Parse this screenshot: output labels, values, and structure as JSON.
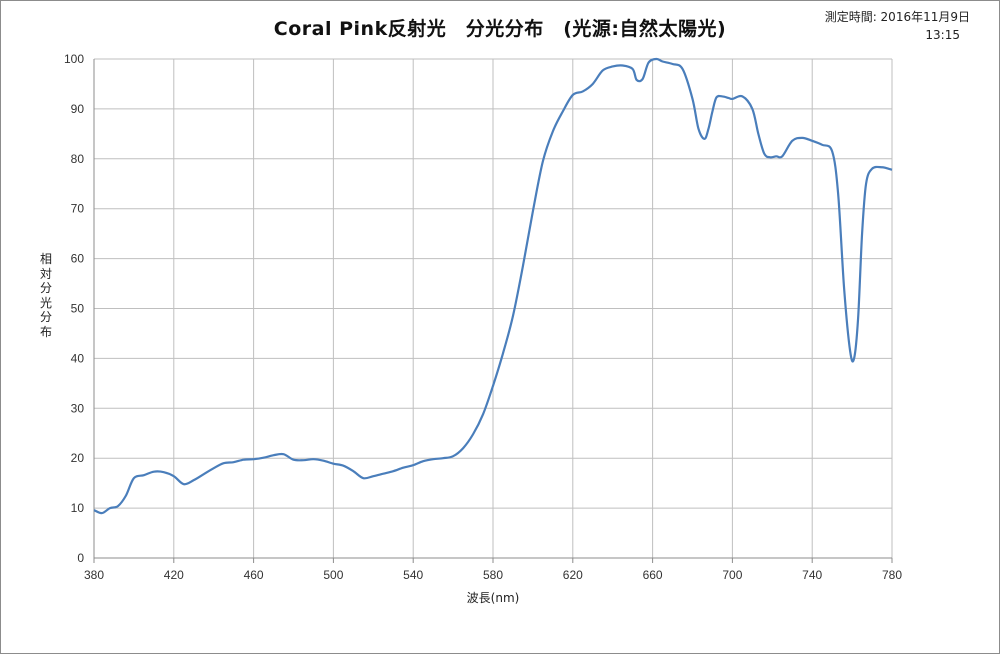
{
  "chart_data": {
    "type": "line",
    "title": "Coral Pink反射光　分光分布　(光源:自然太陽光)",
    "timestamp_line1": "測定時間: 2016年11月9日",
    "timestamp_line2": "13:15",
    "xlabel": "波長(nm)",
    "ylabel": "相対分光分布",
    "xlim": [
      380,
      780
    ],
    "ylim": [
      0,
      100
    ],
    "x_ticks": [
      380,
      420,
      460,
      500,
      540,
      580,
      620,
      660,
      700,
      740,
      780
    ],
    "y_ticks": [
      0,
      10,
      20,
      30,
      40,
      50,
      60,
      70,
      80,
      90,
      100
    ],
    "grid": true,
    "line_color": "#4a7ebb",
    "series": [
      {
        "x": [
          380,
          384,
          388,
          392,
          396,
          400,
          405,
          410,
          415,
          420,
          425,
          430,
          435,
          440,
          445,
          450,
          455,
          460,
          465,
          470,
          475,
          480,
          485,
          490,
          495,
          500,
          505,
          510,
          515,
          520,
          525,
          530,
          535,
          540,
          545,
          550,
          555,
          560,
          565,
          570,
          575,
          580,
          585,
          590,
          595,
          600,
          605,
          610,
          615,
          620,
          625,
          630,
          635,
          640,
          645,
          650,
          652,
          655,
          658,
          662,
          665,
          670,
          675,
          680,
          683,
          686,
          688,
          690,
          692,
          695,
          698,
          700,
          705,
          710,
          713,
          716,
          719,
          722,
          725,
          730,
          735,
          740,
          745,
          750,
          753,
          756,
          759,
          761,
          763,
          765,
          767,
          770,
          775,
          780
        ],
        "y": [
          9.6,
          9.0,
          10.0,
          10.4,
          12.5,
          16.0,
          16.6,
          17.3,
          17.2,
          16.4,
          14.8,
          15.6,
          16.8,
          18.0,
          19.0,
          19.2,
          19.7,
          19.8,
          20.1,
          20.6,
          20.8,
          19.7,
          19.6,
          19.8,
          19.5,
          18.9,
          18.5,
          17.4,
          16.0,
          16.4,
          16.9,
          17.4,
          18.1,
          18.6,
          19.4,
          19.8,
          20.0,
          20.4,
          22.0,
          24.8,
          28.8,
          34.5,
          41.0,
          48.5,
          58.5,
          69.5,
          79.5,
          85.5,
          89.5,
          92.8,
          93.5,
          95.0,
          97.7,
          98.5,
          98.7,
          98.0,
          95.8,
          96.0,
          99.3,
          100.0,
          99.5,
          99.0,
          98.0,
          92.0,
          86.0,
          84.0,
          86.0,
          89.5,
          92.3,
          92.5,
          92.2,
          92.0,
          92.5,
          90.0,
          85.0,
          81.0,
          80.3,
          80.5,
          80.5,
          83.6,
          84.2,
          83.6,
          82.8,
          81.5,
          73.0,
          54.0,
          41.5,
          40.0,
          48.0,
          65.0,
          75.0,
          78.0,
          78.3,
          77.8
        ]
      }
    ]
  }
}
